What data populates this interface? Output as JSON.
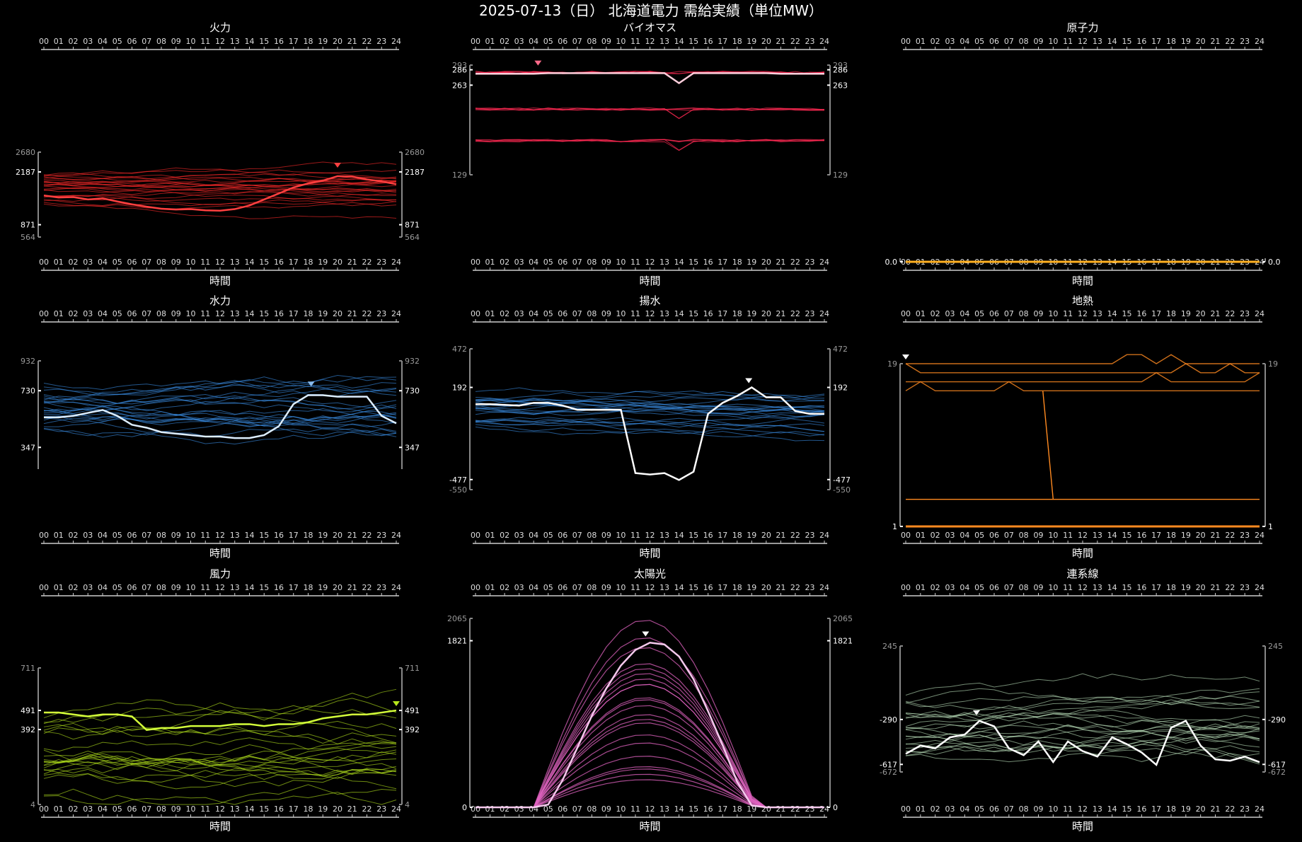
{
  "title": "2025-07-13（日） 北海道電力 需給実績（単位MW）",
  "x_axis_label": "時間",
  "hour_ticks": [
    "00",
    "01",
    "02",
    "03",
    "04",
    "05",
    "06",
    "07",
    "08",
    "09",
    "10",
    "11",
    "12",
    "13",
    "14",
    "15",
    "16",
    "17",
    "18",
    "19",
    "20",
    "21",
    "22",
    "23",
    "24"
  ],
  "chart_data": [
    {
      "type": "line",
      "title": "火力",
      "color": "#ff2a2a",
      "ylim": [
        564,
        2680
      ],
      "yticks": [
        {
          "v": 2680,
          "t": "2680",
          "minor": true
        },
        {
          "v": 2187,
          "t": "2187"
        },
        {
          "v": 871,
          "t": "871"
        },
        {
          "v": 564,
          "t": "564",
          "minor": true
        }
      ],
      "today": [
        1600,
        1550,
        1560,
        1500,
        1530,
        1450,
        1380,
        1320,
        1270,
        1250,
        1260,
        1230,
        1220,
        1260,
        1350,
        1500,
        1650,
        1800,
        1900,
        1970,
        2080,
        2070,
        2000,
        1950,
        1880
      ],
      "band": [
        1400,
        2100
      ],
      "peak_hour": 20,
      "peak_value": 2187
    },
    {
      "type": "line",
      "title": "バイオマス",
      "color": "#ff2a52",
      "ylim": [
        129,
        293
      ],
      "yticks": [
        {
          "v": 293,
          "t": "293",
          "minor": true
        },
        {
          "v": 286,
          "t": "286"
        },
        {
          "v": 263,
          "t": "263"
        },
        {
          "v": 129,
          "t": "129",
          "minor": true
        }
      ],
      "today": [
        280,
        280,
        280,
        280,
        280,
        281,
        281,
        281,
        281,
        281,
        281,
        281,
        281,
        281,
        266,
        281,
        281,
        281,
        281,
        281,
        281,
        280,
        280,
        280,
        280
      ],
      "levels": [
        282,
        227,
        180
      ],
      "peak_hour": 4.3,
      "peak_value": 286
    },
    {
      "type": "line",
      "title": "原子力",
      "color": "#ffb020",
      "ylim": [
        0,
        1
      ],
      "yticks": [
        {
          "v": 0,
          "t": "0.0"
        }
      ],
      "today": [
        0,
        0,
        0,
        0,
        0,
        0,
        0,
        0,
        0,
        0,
        0,
        0,
        0,
        0,
        0,
        0,
        0,
        0,
        0,
        0,
        0,
        0,
        0,
        0,
        0
      ],
      "flat": true
    },
    {
      "type": "line",
      "title": "水力",
      "color": "#3a8fe8",
      "ylim": [
        200,
        932
      ],
      "yticks": [
        {
          "v": 932,
          "t": "932",
          "minor": true
        },
        {
          "v": 730,
          "t": "730"
        },
        {
          "v": 347,
          "t": "347"
        }
      ],
      "today": [
        550,
        550,
        560,
        580,
        600,
        560,
        500,
        480,
        450,
        440,
        430,
        420,
        420,
        410,
        410,
        430,
        490,
        640,
        700,
        700,
        690,
        690,
        690,
        560,
        510
      ],
      "band": [
        450,
        800
      ],
      "peak_hour": 18.2,
      "peak_value": 730
    },
    {
      "type": "line",
      "title": "揚水",
      "color": "#3a8fe8",
      "ylim": [
        -550,
        472
      ],
      "yticks": [
        {
          "v": 472,
          "t": "472",
          "minor": true
        },
        {
          "v": 192,
          "t": "192"
        },
        {
          "v": -477,
          "t": "-477"
        },
        {
          "v": -550,
          "t": "-550",
          "minor": true
        }
      ],
      "today": [
        70,
        70,
        65,
        60,
        80,
        80,
        60,
        30,
        30,
        30,
        30,
        -430,
        -440,
        -430,
        -480,
        -420,
        0,
        80,
        130,
        192,
        120,
        120,
        20,
        0,
        0
      ],
      "band": [
        -100,
        150
      ],
      "peak_hour": 18.8,
      "peak_value": 192
    },
    {
      "type": "line",
      "title": "地熱",
      "color": "#ff8a20",
      "ylim": [
        1,
        19
      ],
      "yticks": [
        {
          "v": 19,
          "t": "19",
          "minor": true
        },
        {
          "v": 1,
          "t": "1"
        }
      ],
      "levels": [
        19,
        18,
        17,
        16
      ],
      "peak_hour": 0,
      "peak_value": 19
    },
    {
      "type": "line",
      "title": "風力",
      "color": "#b6e61c",
      "ylim": [
        4,
        711
      ],
      "yticks": [
        {
          "v": 711,
          "t": "711",
          "minor": true
        },
        {
          "v": 491,
          "t": "491"
        },
        {
          "v": 392,
          "t": "392"
        },
        {
          "v": 4,
          "t": "4",
          "minor": true
        }
      ],
      "today": [
        480,
        480,
        470,
        460,
        470,
        470,
        460,
        390,
        400,
        400,
        410,
        410,
        410,
        420,
        420,
        410,
        420,
        420,
        430,
        450,
        460,
        470,
        470,
        480,
        491
      ],
      "band": [
        50,
        450
      ],
      "peak_hour": 24,
      "peak_value": 491
    },
    {
      "type": "line",
      "title": "太陽光",
      "color": "#e063c0",
      "ylim": [
        0,
        2065
      ],
      "yticks": [
        {
          "v": 2065,
          "t": "2065",
          "minor": true
        },
        {
          "v": 1821,
          "t": "1821"
        },
        {
          "v": 0,
          "t": "0"
        }
      ],
      "today": [
        0,
        0,
        0,
        0,
        0,
        30,
        300,
        650,
        1000,
        1300,
        1550,
        1720,
        1800,
        1780,
        1650,
        1400,
        1050,
        680,
        280,
        20,
        0,
        0,
        0,
        0,
        0
      ],
      "peak_hour": 11.7,
      "peak_value": 1821
    },
    {
      "type": "line",
      "title": "連系線",
      "color": "#ffffff",
      "ylim": [
        -672,
        245
      ],
      "yticks": [
        {
          "v": 245,
          "t": "245",
          "minor": true
        },
        {
          "v": -290,
          "t": "-290"
        },
        {
          "v": -617,
          "t": "-617"
        },
        {
          "v": -672,
          "t": "-672",
          "minor": true
        }
      ],
      "today": [
        -540,
        -480,
        -500,
        -420,
        -400,
        -300,
        -340,
        -500,
        -550,
        -450,
        -600,
        -450,
        -520,
        -560,
        -420,
        -470,
        -530,
        -620,
        -350,
        -300,
        -480,
        -580,
        -590,
        -560,
        -600
      ],
      "band": [
        -560,
        -100
      ],
      "peak_hour": 4.8,
      "peak_value": -290
    }
  ]
}
